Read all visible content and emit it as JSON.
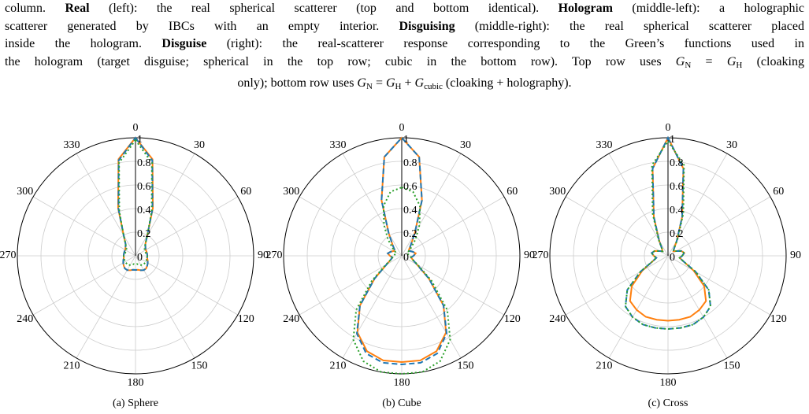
{
  "caption": {
    "lines": [
      [
        "column. ",
        {
          "text": "Real",
          "style": "bold"
        },
        " (left): the real spherical scatterer (top and bottom identical). ",
        {
          "text": "Hologram",
          "style": "bold"
        },
        " (middle-left): a holographic"
      ],
      [
        "scatterer generated by IBCs with an empty interior. ",
        {
          "text": "Disguising",
          "style": "bold"
        },
        " (middle-right): the real spherical scatterer placed"
      ],
      [
        "inside the hologram. ",
        {
          "text": "Disguise",
          "style": "bold"
        },
        " (right): the real-scatterer response corresponding to the Green’s functions used in"
      ],
      [
        "the hologram (target disguise; spherical in the top row; cubic in the bottom row). Top row uses ",
        {
          "text": "G",
          "style": "math"
        },
        {
          "text": "N",
          "style": "sub"
        },
        " = ",
        {
          "text": "G",
          "style": "math"
        },
        {
          "text": "H",
          "style": "sub"
        },
        " (cloaking"
      ],
      [
        "only); bottom row uses ",
        {
          "text": "G",
          "style": "math"
        },
        {
          "text": "N",
          "style": "sub"
        },
        " = ",
        {
          "text": "G",
          "style": "math"
        },
        {
          "text": "H",
          "style": "sub"
        },
        " + ",
        {
          "text": "G",
          "style": "math"
        },
        {
          "text": "cubic",
          "style": "sub"
        },
        " (cloaking + holography)."
      ]
    ]
  },
  "chart_data": [
    {
      "type": "polar",
      "subtitle": "(a) Sphere",
      "x": [
        0,
        10,
        20,
        30,
        40,
        50,
        60,
        70,
        80,
        90,
        100,
        110,
        120,
        130,
        140,
        150,
        160,
        170,
        180,
        190,
        200,
        210,
        220,
        230,
        240,
        250,
        260,
        270,
        280,
        290,
        300,
        310,
        320,
        330,
        340,
        350
      ],
      "ylim": [
        0,
        1
      ],
      "yticks": [
        0,
        0.2,
        0.4,
        0.6,
        0.8,
        1
      ],
      "xticks": [
        0,
        30,
        60,
        90,
        120,
        150,
        180,
        210,
        240,
        270,
        300,
        330
      ],
      "grid": true,
      "series": [
        {
          "color": "#ff7f0e",
          "dash": "solid",
          "values": [
            1,
            0.83,
            0.43,
            0.2,
            0.13,
            0.11,
            0.1,
            0.1,
            0.1,
            0.1,
            0.1,
            0.11,
            0.12,
            0.13,
            0.14,
            0.14,
            0.13,
            0.12,
            0.12,
            0.12,
            0.13,
            0.14,
            0.14,
            0.13,
            0.12,
            0.11,
            0.1,
            0.1,
            0.1,
            0.1,
            0.1,
            0.11,
            0.13,
            0.2,
            0.43,
            0.83
          ]
        },
        {
          "color": "#1f77b4",
          "dash": "dashed",
          "values": [
            1,
            0.82,
            0.42,
            0.2,
            0.13,
            0.11,
            0.1,
            0.1,
            0.1,
            0.1,
            0.1,
            0.11,
            0.12,
            0.13,
            0.14,
            0.14,
            0.13,
            0.12,
            0.12,
            0.12,
            0.13,
            0.14,
            0.14,
            0.13,
            0.12,
            0.11,
            0.1,
            0.1,
            0.1,
            0.1,
            0.1,
            0.11,
            0.13,
            0.2,
            0.42,
            0.82
          ]
        },
        {
          "color": "#2ca02c",
          "dash": "dotted",
          "values": [
            0.98,
            0.8,
            0.4,
            0.2,
            0.13,
            0.1,
            0.09,
            0.09,
            0.09,
            0.1,
            0.1,
            0.1,
            0.1,
            0.1,
            0.1,
            0.09,
            0.08,
            0.07,
            0.07,
            0.07,
            0.08,
            0.09,
            0.1,
            0.1,
            0.1,
            0.1,
            0.1,
            0.1,
            0.09,
            0.09,
            0.09,
            0.1,
            0.13,
            0.2,
            0.4,
            0.8
          ]
        }
      ]
    },
    {
      "type": "polar",
      "subtitle": "(b) Cube",
      "x": [
        0,
        10,
        20,
        30,
        40,
        50,
        60,
        70,
        80,
        90,
        100,
        110,
        120,
        130,
        140,
        150,
        160,
        170,
        180,
        190,
        200,
        210,
        220,
        230,
        240,
        250,
        260,
        270,
        280,
        290,
        300,
        310,
        320,
        330,
        340,
        350
      ],
      "ylim": [
        0,
        1
      ],
      "yticks": [
        0,
        0.2,
        0.4,
        0.6,
        0.8,
        1
      ],
      "xticks": [
        0,
        30,
        60,
        90,
        120,
        150,
        180,
        210,
        240,
        270,
        300,
        330
      ],
      "grid": true,
      "series": [
        {
          "color": "#ff7f0e",
          "dash": "solid",
          "values": [
            1,
            0.85,
            0.5,
            0.22,
            0.12,
            0.08,
            0.08,
            0.1,
            0.12,
            0.1,
            0.08,
            0.1,
            0.15,
            0.3,
            0.55,
            0.75,
            0.86,
            0.9,
            0.9,
            0.9,
            0.86,
            0.75,
            0.55,
            0.3,
            0.15,
            0.1,
            0.08,
            0.1,
            0.12,
            0.1,
            0.08,
            0.08,
            0.12,
            0.22,
            0.5,
            0.85
          ]
        },
        {
          "color": "#1f77b4",
          "dash": "dashed",
          "values": [
            1,
            0.85,
            0.5,
            0.22,
            0.12,
            0.08,
            0.08,
            0.1,
            0.12,
            0.1,
            0.08,
            0.1,
            0.15,
            0.3,
            0.55,
            0.76,
            0.88,
            0.92,
            0.92,
            0.92,
            0.88,
            0.76,
            0.55,
            0.3,
            0.15,
            0.1,
            0.08,
            0.1,
            0.12,
            0.1,
            0.08,
            0.08,
            0.12,
            0.22,
            0.5,
            0.85
          ]
        },
        {
          "color": "#2ca02c",
          "dash": "dotted",
          "values": [
            0.58,
            0.55,
            0.45,
            0.3,
            0.18,
            0.1,
            0.06,
            0.05,
            0.06,
            0.07,
            0.08,
            0.1,
            0.16,
            0.33,
            0.6,
            0.82,
            0.95,
            1,
            1,
            1,
            0.95,
            0.82,
            0.6,
            0.33,
            0.16,
            0.1,
            0.08,
            0.07,
            0.06,
            0.05,
            0.06,
            0.1,
            0.18,
            0.3,
            0.45,
            0.55
          ]
        }
      ]
    },
    {
      "type": "polar",
      "subtitle": "(c) Cross",
      "x": [
        0,
        10,
        20,
        30,
        40,
        50,
        60,
        70,
        80,
        90,
        100,
        110,
        120,
        130,
        140,
        150,
        160,
        170,
        180,
        190,
        200,
        210,
        220,
        230,
        240,
        250,
        260,
        270,
        280,
        290,
        300,
        310,
        320,
        330,
        340,
        350
      ],
      "ylim": [
        0,
        1
      ],
      "yticks": [
        0,
        0.2,
        0.4,
        0.6,
        0.8,
        1
      ],
      "xticks": [
        0,
        30,
        60,
        90,
        120,
        150,
        180,
        210,
        240,
        270,
        300,
        330
      ],
      "grid": true,
      "series": [
        {
          "color": "#ff7f0e",
          "dash": "solid",
          "values": [
            1,
            0.75,
            0.35,
            0.15,
            0.08,
            0.06,
            0.08,
            0.12,
            0.14,
            0.12,
            0.1,
            0.14,
            0.25,
            0.4,
            0.5,
            0.53,
            0.55,
            0.55,
            0.55,
            0.55,
            0.55,
            0.53,
            0.5,
            0.4,
            0.25,
            0.14,
            0.1,
            0.12,
            0.14,
            0.12,
            0.08,
            0.06,
            0.08,
            0.15,
            0.35,
            0.75
          ]
        },
        {
          "color": "#1f77b4",
          "dash": "dashed",
          "values": [
            1,
            0.75,
            0.35,
            0.15,
            0.08,
            0.06,
            0.08,
            0.12,
            0.14,
            0.12,
            0.1,
            0.14,
            0.27,
            0.45,
            0.56,
            0.6,
            0.62,
            0.62,
            0.62,
            0.62,
            0.62,
            0.6,
            0.56,
            0.45,
            0.27,
            0.14,
            0.1,
            0.12,
            0.14,
            0.12,
            0.08,
            0.06,
            0.08,
            0.15,
            0.35,
            0.75
          ]
        },
        {
          "color": "#2ca02c",
          "dash": "dotted",
          "values": [
            0.97,
            0.78,
            0.38,
            0.16,
            0.08,
            0.06,
            0.08,
            0.12,
            0.14,
            0.12,
            0.1,
            0.14,
            0.27,
            0.45,
            0.56,
            0.6,
            0.62,
            0.62,
            0.62,
            0.62,
            0.62,
            0.6,
            0.56,
            0.45,
            0.27,
            0.14,
            0.1,
            0.12,
            0.14,
            0.12,
            0.08,
            0.06,
            0.08,
            0.16,
            0.38,
            0.78
          ]
        }
      ]
    }
  ]
}
